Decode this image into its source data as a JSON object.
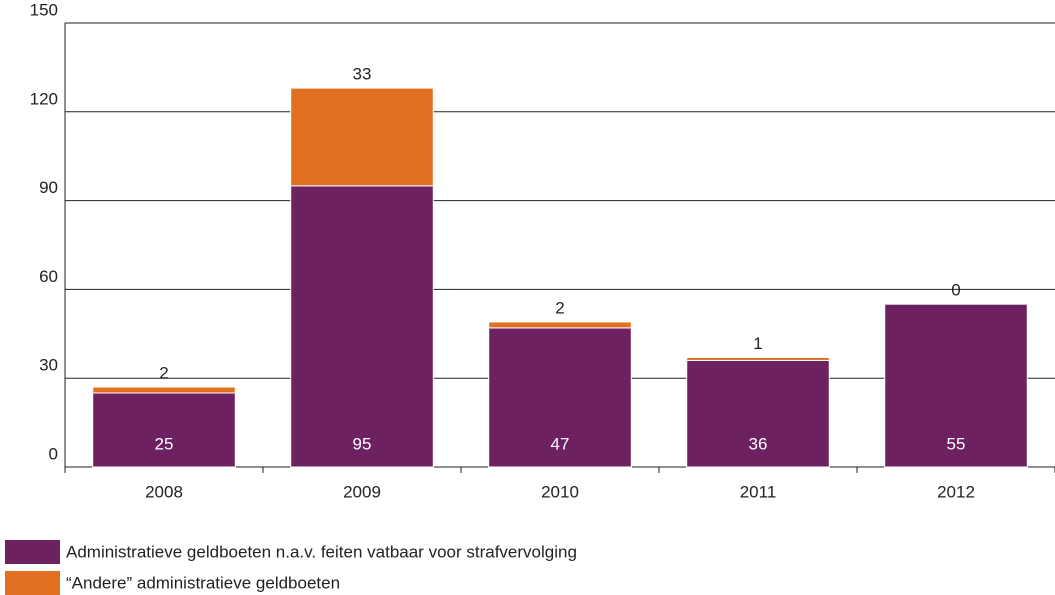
{
  "chart_data": {
    "type": "stacked_bar",
    "categories": [
      "2008",
      "2009",
      "2010",
      "2011",
      "2012"
    ],
    "series": [
      {
        "name": "Administratieve geldboeten n.a.v. feiten vatbaar voor strafvervolging",
        "color": "#6e2160",
        "values": [
          25,
          95,
          47,
          36,
          55
        ]
      },
      {
        "name": "“Andere” administratieve geldboeten",
        "color": "#e0701f",
        "values": [
          2,
          33,
          2,
          1,
          0
        ]
      }
    ],
    "ylim": [
      0,
      150
    ],
    "yticks": [
      0,
      30,
      60,
      90,
      120,
      150
    ],
    "grid": true
  }
}
